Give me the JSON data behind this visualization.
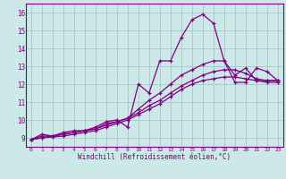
{
  "xlabel": "Windchill (Refroidissement éolien,°C)",
  "background_color": "#cce8e8",
  "grid_color": "#aacccc",
  "line_color": "#800080",
  "xlim": [
    -0.5,
    23.5
  ],
  "ylim": [
    8.5,
    16.5
  ],
  "xticks": [
    0,
    1,
    2,
    3,
    4,
    5,
    6,
    7,
    8,
    9,
    10,
    11,
    12,
    13,
    14,
    15,
    16,
    17,
    18,
    19,
    20,
    21,
    22,
    23
  ],
  "yticks": [
    9,
    10,
    11,
    12,
    13,
    14,
    15,
    16
  ],
  "curves": [
    {
      "x": [
        0,
        1,
        2,
        3,
        4,
        5,
        6,
        7,
        8,
        9,
        10,
        11,
        12,
        13,
        14,
        15,
        16,
        17,
        18,
        19,
        20,
        21,
        22,
        23
      ],
      "y": [
        8.9,
        9.2,
        9.1,
        9.3,
        9.4,
        9.4,
        9.6,
        9.9,
        10.0,
        9.6,
        12.0,
        11.5,
        13.3,
        13.3,
        14.6,
        15.6,
        15.9,
        15.4,
        13.3,
        12.1,
        12.1,
        12.9,
        12.7,
        12.2
      ]
    },
    {
      "x": [
        0,
        1,
        2,
        3,
        4,
        5,
        6,
        7,
        8,
        9,
        10,
        11,
        12,
        13,
        14,
        15,
        16,
        17,
        18,
        19,
        20,
        21,
        22,
        23
      ],
      "y": [
        8.9,
        9.1,
        9.1,
        9.2,
        9.3,
        9.4,
        9.5,
        9.8,
        9.9,
        10.1,
        10.6,
        11.1,
        11.5,
        12.0,
        12.5,
        12.8,
        13.1,
        13.3,
        13.3,
        12.5,
        12.9,
        12.2,
        12.2,
        12.2
      ]
    },
    {
      "x": [
        0,
        1,
        2,
        3,
        4,
        5,
        6,
        7,
        8,
        9,
        10,
        11,
        12,
        13,
        14,
        15,
        16,
        17,
        18,
        19,
        20,
        21,
        22,
        23
      ],
      "y": [
        8.9,
        9.0,
        9.1,
        9.2,
        9.3,
        9.4,
        9.5,
        9.7,
        9.9,
        10.1,
        10.4,
        10.8,
        11.1,
        11.5,
        11.9,
        12.2,
        12.5,
        12.7,
        12.8,
        12.8,
        12.6,
        12.3,
        12.2,
        12.2
      ]
    },
    {
      "x": [
        0,
        1,
        2,
        3,
        4,
        5,
        6,
        7,
        8,
        9,
        10,
        11,
        12,
        13,
        14,
        15,
        16,
        17,
        18,
        19,
        20,
        21,
        22,
        23
      ],
      "y": [
        8.9,
        9.0,
        9.05,
        9.1,
        9.2,
        9.3,
        9.4,
        9.6,
        9.8,
        10.0,
        10.3,
        10.6,
        10.9,
        11.3,
        11.7,
        12.0,
        12.2,
        12.3,
        12.4,
        12.4,
        12.3,
        12.2,
        12.1,
        12.1
      ]
    }
  ]
}
